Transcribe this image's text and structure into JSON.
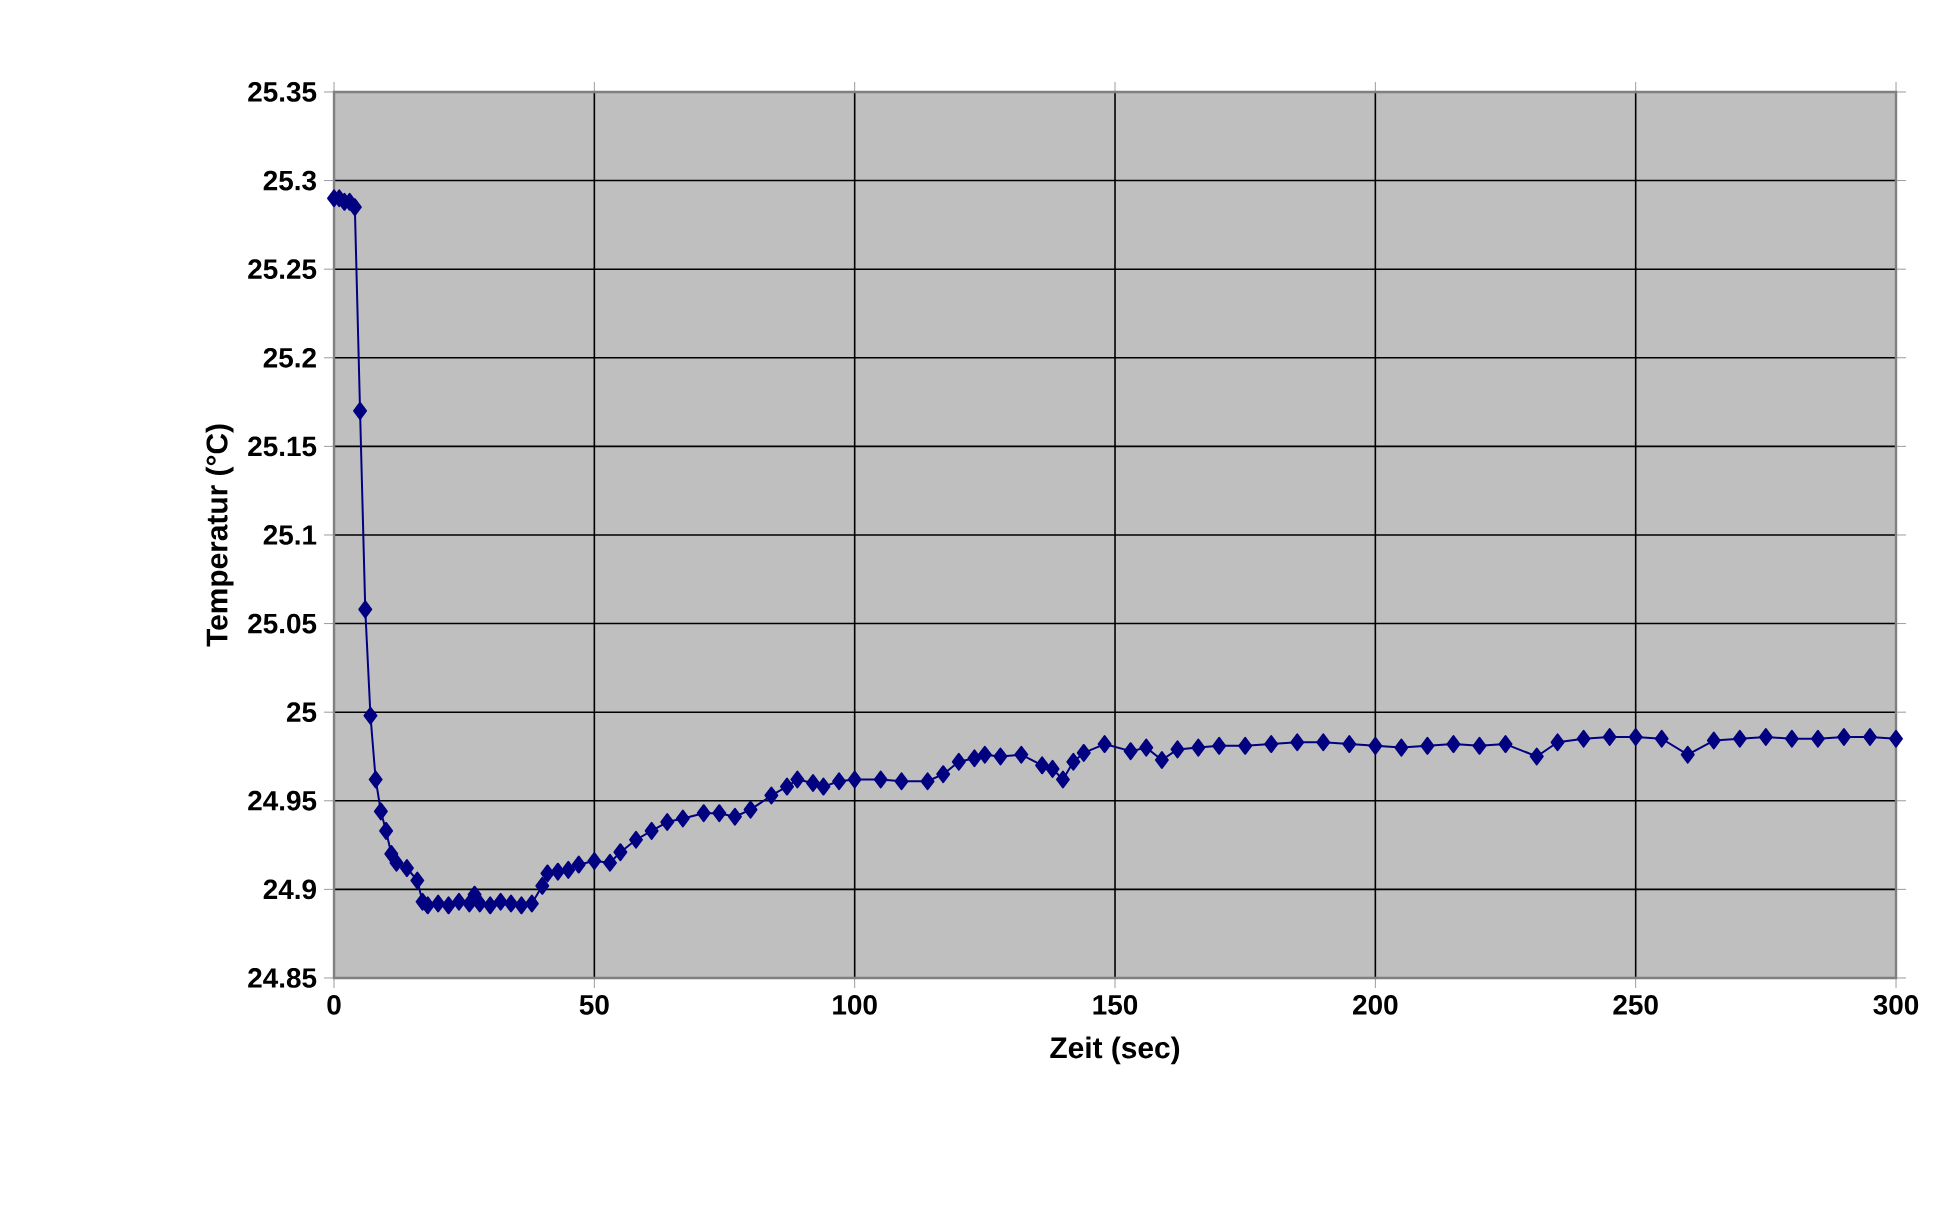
{
  "chart_data": {
    "type": "line",
    "xlabel": "Zeit (sec)",
    "ylabel": "Temperatur (°C)",
    "x": [
      0,
      1,
      2,
      3,
      4,
      5,
      6,
      7,
      8,
      9,
      10,
      11,
      12,
      14,
      16,
      17,
      18,
      20,
      22,
      24,
      26,
      27,
      28,
      30,
      32,
      34,
      36,
      38,
      40,
      41,
      43,
      45,
      47,
      50,
      53,
      55,
      58,
      61,
      64,
      67,
      71,
      74,
      77,
      80,
      84,
      87,
      89,
      92,
      94,
      97,
      100,
      105,
      109,
      114,
      117,
      120,
      123,
      125,
      128,
      132,
      136,
      138,
      140,
      142,
      144,
      148,
      153,
      156,
      159,
      162,
      166,
      170,
      175,
      180,
      185,
      190,
      195,
      200,
      205,
      210,
      215,
      220,
      225,
      231,
      235,
      240,
      245,
      250,
      255,
      260,
      265,
      270,
      275,
      280,
      285,
      290,
      295,
      300
    ],
    "series": [
      {
        "color": "#000080",
        "values": [
          25.29,
          25.29,
          25.288,
          25.288,
          25.285,
          25.17,
          25.058,
          24.998,
          24.962,
          24.944,
          24.933,
          24.92,
          24.915,
          24.912,
          24.905,
          24.893,
          24.891,
          24.892,
          24.891,
          24.893,
          24.892,
          24.897,
          24.892,
          24.891,
          24.893,
          24.892,
          24.891,
          24.892,
          24.902,
          24.909,
          24.91,
          24.911,
          24.914,
          24.916,
          24.915,
          24.921,
          24.928,
          24.933,
          24.938,
          24.94,
          24.943,
          24.943,
          24.941,
          24.945,
          24.953,
          24.958,
          24.962,
          24.96,
          24.958,
          24.961,
          24.962,
          24.962,
          24.961,
          24.961,
          24.965,
          24.972,
          24.974,
          24.976,
          24.975,
          24.976,
          24.97,
          24.968,
          24.962,
          24.972,
          24.977,
          24.982,
          24.978,
          24.98,
          24.973,
          24.979,
          24.98,
          24.981,
          24.981,
          24.982,
          24.983,
          24.983,
          24.982,
          24.981,
          24.98,
          24.981,
          24.982,
          24.981,
          24.982,
          24.975,
          24.983,
          24.985,
          24.986,
          24.986,
          24.985,
          24.976,
          24.984,
          24.985,
          24.986,
          24.985,
          24.985,
          24.986,
          24.986,
          24.985
        ]
      }
    ],
    "xlim": [
      0,
      300
    ],
    "xticks": [
      0,
      50,
      100,
      150,
      200,
      250,
      300
    ],
    "ylim": [
      24.85,
      25.35
    ],
    "yticks": [
      24.85,
      24.9,
      24.95,
      25,
      25.05,
      25.1,
      25.15,
      25.2,
      25.25,
      25.3,
      25.35
    ],
    "grid": true,
    "marker": "diamond",
    "line_style": "solid"
  }
}
